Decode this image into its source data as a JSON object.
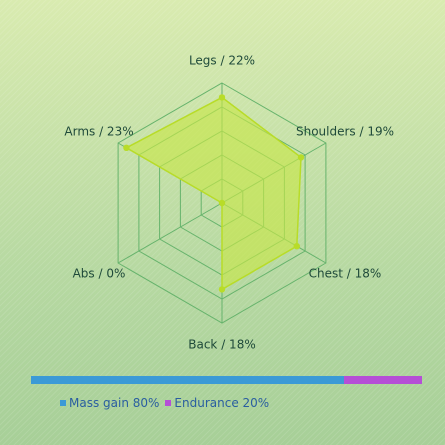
{
  "colors": {
    "fill": "#c8e64a",
    "stroke": "#b8dc28",
    "grid": "#66b36c",
    "mass_gain": "#3b9ad6",
    "endurance": "#b54fd6"
  },
  "chart_data": {
    "type": "radar",
    "axes": [
      {
        "name": "Legs",
        "label": "Legs / 22%",
        "value": 22
      },
      {
        "name": "Shoulders",
        "label": "Shoulders / 19%",
        "value": 19
      },
      {
        "name": "Chest",
        "label": "Chest / 18%",
        "value": 18
      },
      {
        "name": "Back",
        "label": "Back / 18%",
        "value": 18
      },
      {
        "name": "Abs",
        "label": "Abs / 0%",
        "value": 0
      },
      {
        "name": "Arms",
        "label": "Arms / 23%",
        "value": 23
      }
    ],
    "rmax": 25,
    "rings": 5,
    "grid": true
  },
  "split": {
    "items": [
      {
        "label": "Mass gain 80%",
        "value": 80,
        "color": "#3b9ad6"
      },
      {
        "label": "Endurance 20%",
        "value": 20,
        "color": "#b54fd6"
      }
    ]
  }
}
